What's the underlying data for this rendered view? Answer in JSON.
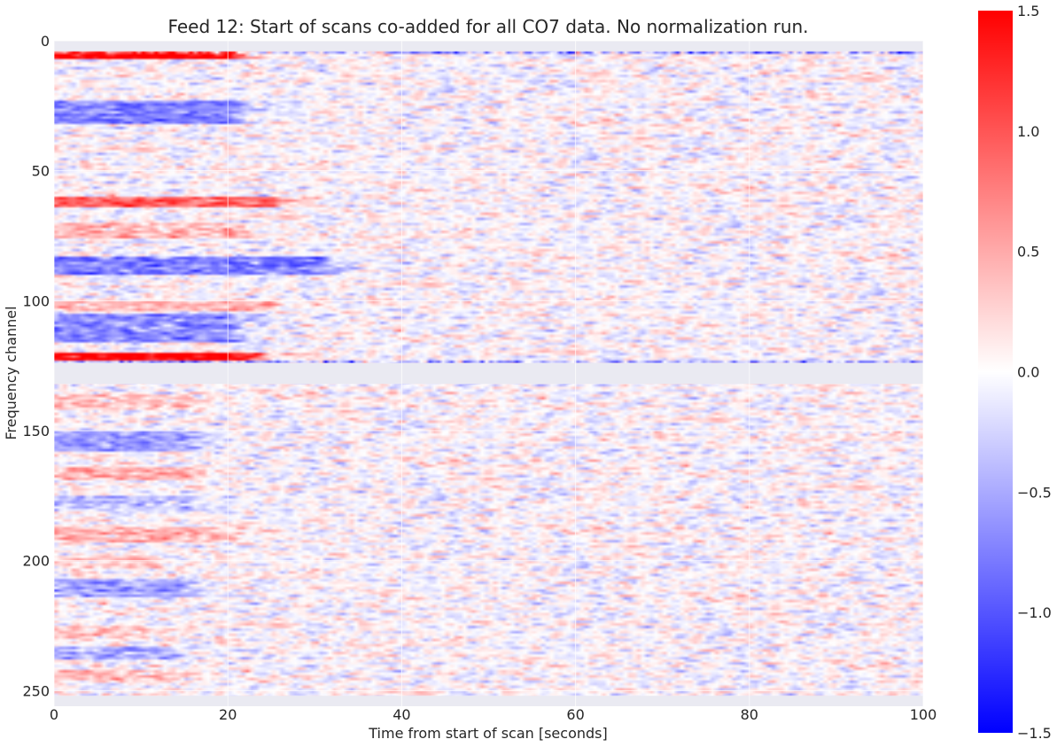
{
  "chart_data": {
    "type": "heatmap",
    "title": "Feed 12: Start of scans co-added for all CO7 data. No normalization run.",
    "xlabel": "Time from start of scan [seconds]",
    "ylabel": "Frequency channel",
    "xlim": [
      0,
      100
    ],
    "ylim": [
      256,
      0
    ],
    "xticks": [
      0,
      20,
      40,
      60,
      80,
      100
    ],
    "yticks": [
      0,
      50,
      100,
      150,
      200,
      250
    ],
    "colormap": "bwr",
    "color_range": [
      -1.5,
      1.5
    ],
    "colorbar_ticks": [
      1.5,
      1.0,
      0.5,
      0.0,
      -0.5,
      -1.0,
      -1.5
    ],
    "colorbar_tick_labels": [
      "1.5",
      "1.0",
      "0.5",
      "0.0",
      "−0.5",
      "−1.0",
      "−1.5"
    ],
    "masked_channel_ranges": [
      [
        0,
        4
      ],
      [
        124,
        132
      ],
      [
        252,
        256
      ]
    ],
    "edge_channels": [
      4,
      123
    ],
    "features": [
      {
        "channels": [
          4,
          7
        ],
        "value": 1.5,
        "t_end": 20
      },
      {
        "channels": [
          23,
          32
        ],
        "value": -0.75,
        "t_end": 20
      },
      {
        "channels": [
          60,
          64
        ],
        "value": 0.9,
        "t_end": 25
      },
      {
        "channels": [
          70,
          76
        ],
        "value": 0.4,
        "t_end": 20
      },
      {
        "channels": [
          83,
          90
        ],
        "value": -0.8,
        "t_end": 30
      },
      {
        "channels": [
          100,
          104
        ],
        "value": 0.4,
        "t_end": 25
      },
      {
        "channels": [
          105,
          116
        ],
        "value": -0.7,
        "t_end": 20
      },
      {
        "channels": [
          120,
          123
        ],
        "value": 1.5,
        "t_end": 22
      },
      {
        "channels": [
          136,
          142
        ],
        "value": 0.35,
        "t_end": 15
      },
      {
        "channels": [
          150,
          158
        ],
        "value": -0.55,
        "t_end": 15
      },
      {
        "channels": [
          164,
          169
        ],
        "value": 0.45,
        "t_end": 15
      },
      {
        "channels": [
          175,
          181
        ],
        "value": -0.4,
        "t_end": 15
      },
      {
        "channels": [
          187,
          193
        ],
        "value": 0.45,
        "t_end": 18
      },
      {
        "channels": [
          199,
          203
        ],
        "value": 0.3,
        "t_end": 12
      },
      {
        "channels": [
          207,
          214
        ],
        "value": -0.5,
        "t_end": 15
      },
      {
        "channels": [
          225,
          230
        ],
        "value": 0.3,
        "t_end": 12
      },
      {
        "channels": [
          233,
          238
        ],
        "value": -0.45,
        "t_end": 12
      },
      {
        "channels": [
          242,
          247
        ],
        "value": 0.3,
        "t_end": 12
      }
    ],
    "background_noise_std": 0.2
  },
  "colors": {
    "mask": "#eaeaf2",
    "grid": "#ffffff",
    "high": "#ff0000",
    "mid": "#ffffff",
    "low": "#0000ff"
  }
}
